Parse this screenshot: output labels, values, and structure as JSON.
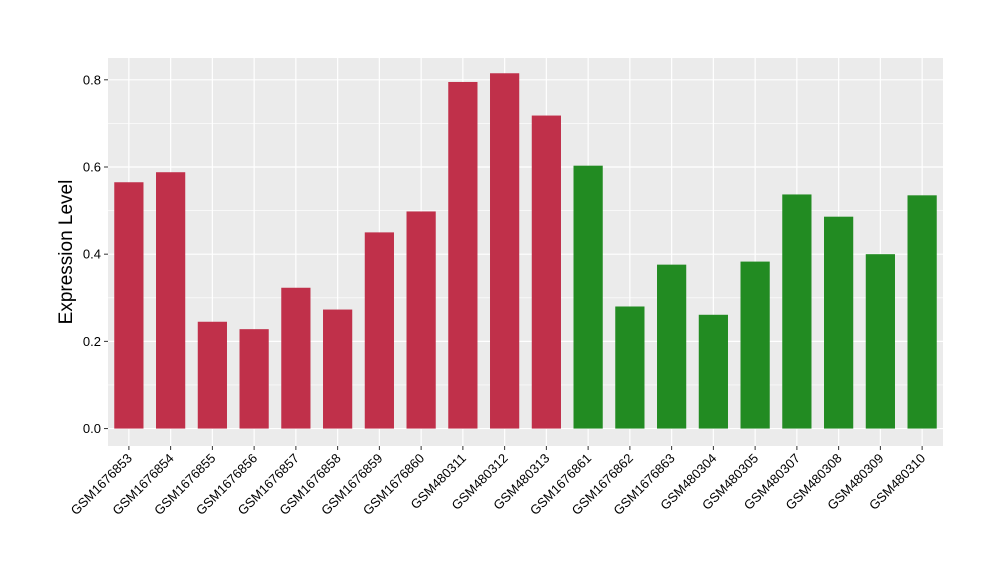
{
  "chart_data": {
    "type": "bar",
    "title": "",
    "xlabel": "",
    "ylabel": "Expression Level",
    "ylim": [
      -0.04,
      0.85
    ],
    "yticks": [
      0.0,
      0.2,
      0.4,
      0.6,
      0.8
    ],
    "ytick_labels": [
      "0.0",
      "0.2",
      "0.4",
      "0.6",
      "0.8"
    ],
    "grid": true,
    "legend": "none",
    "panel_background": "#ebebeb",
    "grid_color": "#ffffff",
    "categories": [
      "GSM1676853",
      "GSM1676854",
      "GSM1676855",
      "GSM1676856",
      "GSM1676857",
      "GSM1676858",
      "GSM1676859",
      "GSM1676860",
      "GSM480311",
      "GSM480312",
      "GSM480313",
      "GSM1676861",
      "GSM1676862",
      "GSM1676863",
      "GSM480304",
      "GSM480305",
      "GSM480307",
      "GSM480308",
      "GSM480309",
      "GSM480310"
    ],
    "values": [
      0.565,
      0.588,
      0.245,
      0.228,
      0.323,
      0.273,
      0.45,
      0.498,
      0.795,
      0.815,
      0.718,
      0.603,
      0.28,
      0.376,
      0.261,
      0.383,
      0.537,
      0.486,
      0.4,
      0.535
    ],
    "bar_colors": [
      "#c0304a",
      "#c0304a",
      "#c0304a",
      "#c0304a",
      "#c0304a",
      "#c0304a",
      "#c0304a",
      "#c0304a",
      "#c0304a",
      "#c0304a",
      "#c0304a",
      "#228b22",
      "#228b22",
      "#228b22",
      "#228b22",
      "#228b22",
      "#228b22",
      "#228b22",
      "#228b22",
      "#228b22"
    ]
  }
}
